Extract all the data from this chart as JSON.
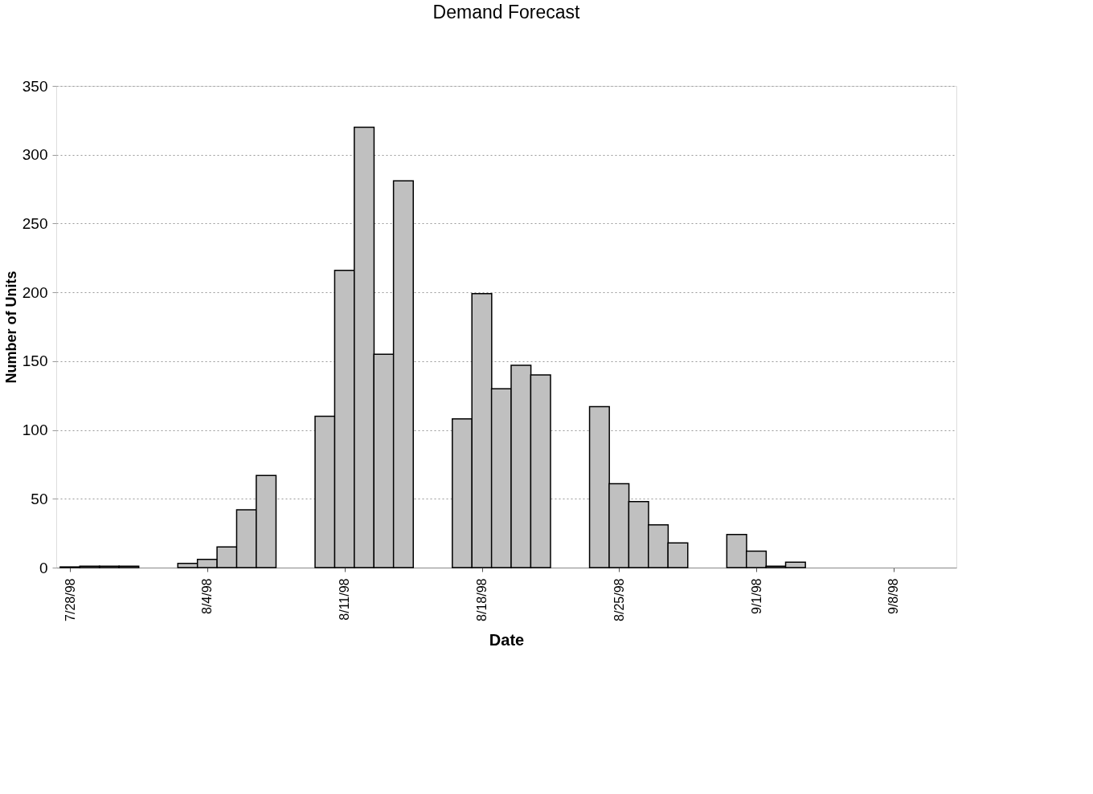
{
  "chart_data": {
    "type": "bar",
    "title": "Demand Forecast",
    "xlabel": "Date",
    "ylabel": "Number of Units",
    "x": [
      "1998-07-28",
      "1998-07-29",
      "1998-07-30",
      "1998-07-31",
      "1998-08-03",
      "1998-08-04",
      "1998-08-05",
      "1998-08-06",
      "1998-08-07",
      "1998-08-10",
      "1998-08-11",
      "1998-08-12",
      "1998-08-13",
      "1998-08-14",
      "1998-08-17",
      "1998-08-18",
      "1998-08-19",
      "1998-08-20",
      "1998-08-21",
      "1998-08-24",
      "1998-08-25",
      "1998-08-26",
      "1998-08-27",
      "1998-08-28",
      "1998-08-31",
      "1998-09-01",
      "1998-09-02",
      "1998-09-03"
    ],
    "values": [
      0.5,
      1,
      1,
      1,
      3,
      6,
      15,
      42,
      67,
      110,
      216,
      320,
      155,
      281,
      108,
      199,
      130,
      147,
      140,
      117,
      61,
      48,
      31,
      18,
      24,
      12,
      1,
      4
    ],
    "color": "#c0c0c0",
    "xlim": [
      "1998-07-27T12:00",
      "1998-09-11"
    ],
    "xticks": [
      {
        "value": "1998-07-28",
        "label": "7/28/98"
      },
      {
        "value": "1998-08-04",
        "label": "8/4/98"
      },
      {
        "value": "1998-08-11",
        "label": "8/11/98"
      },
      {
        "value": "1998-08-18",
        "label": "8/18/98"
      },
      {
        "value": "1998-08-25",
        "label": "8/25/98"
      },
      {
        "value": "1998-09-01",
        "label": "9/1/98"
      },
      {
        "value": "1998-09-08",
        "label": "9/8/98"
      }
    ],
    "ylim": [
      0,
      350
    ],
    "yticks": [
      0,
      50,
      100,
      150,
      200,
      250,
      300,
      350
    ],
    "grid": "y"
  }
}
